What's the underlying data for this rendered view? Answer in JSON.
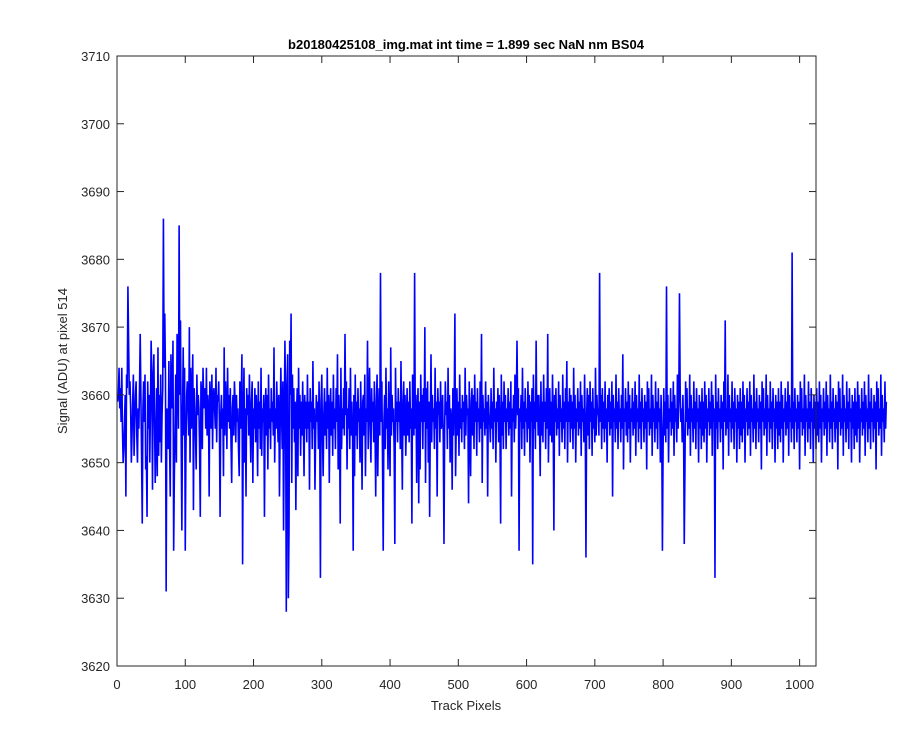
{
  "chart_data": {
    "type": "line",
    "title": "b20180425108_img.mat int time = 1.899 sec  NaN nm BS04",
    "xlabel": "Track Pixels",
    "ylabel": "Signal (ADU) at pixel 514",
    "xlim": [
      0,
      1024
    ],
    "ylim": [
      3620,
      3710
    ],
    "xticks": [
      0,
      100,
      200,
      300,
      400,
      500,
      600,
      700,
      800,
      900,
      1000
    ],
    "yticks": [
      3620,
      3630,
      3640,
      3650,
      3660,
      3670,
      3680,
      3690,
      3700,
      3710
    ],
    "grid": false,
    "line_color": "#0000ff",
    "series": [
      {
        "x_start": 1,
        "x_step": 1,
        "values": [
          3659,
          3660,
          3664,
          3658,
          3661,
          3656,
          3664,
          3655,
          3650,
          3652,
          3656,
          3660,
          3645,
          3663,
          3661,
          3676,
          3668,
          3660,
          3662,
          3658,
          3650,
          3654,
          3659,
          3663,
          3651,
          3656,
          3660,
          3662,
          3654,
          3650,
          3658,
          3655,
          3661,
          3669,
          3660,
          3651,
          3641,
          3658,
          3662,
          3656,
          3663,
          3649,
          3651,
          3642,
          3662,
          3655,
          3660,
          3650,
          3658,
          3668,
          3663,
          3646,
          3662,
          3666,
          3656,
          3647,
          3654,
          3661,
          3648,
          3667,
          3651,
          3660,
          3653,
          3663,
          3650,
          3657,
          3661,
          3686,
          3664,
          3672,
          3663,
          3631,
          3658,
          3655,
          3652,
          3665,
          3653,
          3645,
          3666,
          3660,
          3658,
          3668,
          3637,
          3648,
          3655,
          3663,
          3650,
          3669,
          3664,
          3655,
          3685,
          3660,
          3671,
          3654,
          3640,
          3657,
          3667,
          3654,
          3664,
          3637,
          3652,
          3660,
          3662,
          3658,
          3654,
          3670,
          3650,
          3664,
          3655,
          3660,
          3666,
          3643,
          3661,
          3658,
          3654,
          3649,
          3663,
          3657,
          3660,
          3658,
          3652,
          3642,
          3662,
          3660,
          3652,
          3664,
          3659,
          3658,
          3661,
          3655,
          3664,
          3654,
          3660,
          3658,
          3645,
          3662,
          3659,
          3655,
          3663,
          3652,
          3660,
          3661,
          3658,
          3655,
          3664,
          3653,
          3660,
          3659,
          3662,
          3656,
          3642,
          3657,
          3660,
          3655,
          3658,
          3648,
          3667,
          3654,
          3662,
          3659,
          3652,
          3664,
          3656,
          3660,
          3655,
          3661,
          3653,
          3647,
          3658,
          3660,
          3654,
          3662,
          3659,
          3653,
          3660,
          3656,
          3658,
          3652,
          3648,
          3662,
          3655,
          3659,
          3666,
          3635,
          3656,
          3664,
          3650,
          3658,
          3645,
          3661,
          3657,
          3660,
          3654,
          3663,
          3656,
          3650,
          3659,
          3662,
          3647,
          3658,
          3655,
          3661,
          3653,
          3660,
          3657,
          3648,
          3662,
          3655,
          3659,
          3652,
          3664,
          3651,
          3658,
          3656,
          3660,
          3642,
          3657,
          3661,
          3654,
          3660,
          3649,
          3663,
          3655,
          3658,
          3652,
          3661,
          3656,
          3659,
          3654,
          3667,
          3650,
          3658,
          3655,
          3662,
          3657,
          3653,
          3660,
          3645,
          3655,
          3664,
          3658,
          3652,
          3662,
          3640,
          3655,
          3668,
          3659,
          3628,
          3661,
          3666,
          3630,
          3640,
          3668,
          3660,
          3672,
          3647,
          3663,
          3655,
          3661,
          3653,
          3659,
          3643,
          3657,
          3661,
          3648,
          3664,
          3655,
          3660,
          3651,
          3659,
          3654,
          3662,
          3656,
          3648,
          3660,
          3655,
          3659,
          3653,
          3663,
          3655,
          3659,
          3646,
          3661,
          3656,
          3659,
          3652,
          3665,
          3655,
          3658,
          3646,
          3654,
          3660,
          3656,
          3659,
          3652,
          3662,
          3655,
          3633,
          3659,
          3663,
          3654,
          3648,
          3657,
          3661,
          3654,
          3659,
          3652,
          3664,
          3655,
          3660,
          3647,
          3657,
          3661,
          3654,
          3659,
          3651,
          3663,
          3655,
          3658,
          3652,
          3661,
          3656,
          3666,
          3649,
          3660,
          3655,
          3641,
          3664,
          3652,
          3658,
          3655,
          3661,
          3654,
          3669,
          3657,
          3662,
          3649,
          3658,
          3655,
          3661,
          3652,
          3664,
          3654,
          3659,
          3655,
          3637,
          3660,
          3648,
          3663,
          3654,
          3659,
          3652,
          3661,
          3656,
          3658,
          3650,
          3662,
          3655,
          3646,
          3659,
          3660,
          3654,
          3663,
          3648,
          3658,
          3656,
          3668,
          3652,
          3659,
          3664,
          3655,
          3650,
          3661,
          3656,
          3659,
          3653,
          3662,
          3655,
          3645,
          3659,
          3663,
          3648,
          3657,
          3661,
          3654,
          3678,
          3656,
          3662,
          3650,
          3637,
          3656,
          3660,
          3652,
          3664,
          3655,
          3658,
          3649,
          3662,
          3655,
          3648,
          3667,
          3654,
          3660,
          3656,
          3658,
          3652,
          3638,
          3664,
          3656,
          3659,
          3653,
          3661,
          3656,
          3659,
          3652,
          3665,
          3655,
          3646,
          3659,
          3662,
          3654,
          3660,
          3651,
          3656,
          3661,
          3654,
          3659,
          3653,
          3662,
          3655,
          3658,
          3641,
          3663,
          3661,
          3654,
          3678,
          3655,
          3660,
          3647,
          3657,
          3661,
          3644,
          3659,
          3649,
          3663,
          3656,
          3660,
          3652,
          3661,
          3656,
          3670,
          3647,
          3661,
          3655,
          3662,
          3650,
          3659,
          3642,
          3656,
          3666,
          3653,
          3660,
          3656,
          3658,
          3652,
          3664,
          3655,
          3659,
          3645,
          3661,
          3657,
          3659,
          3653,
          3662,
          3655,
          3656,
          3660,
          3653,
          3638,
          3655,
          3662,
          3657,
          3659,
          3652,
          3664,
          3655,
          3660,
          3650,
          3658,
          3656,
          3646,
          3661,
          3654,
          3659,
          3672,
          3648,
          3656,
          3661,
          3654,
          3659,
          3651,
          3663,
          3655,
          3658,
          3653,
          3660,
          3656,
          3659,
          3652,
          3664,
          3654,
          3660,
          3657,
          3658,
          3644,
          3662,
          3655,
          3648,
          3659,
          3661,
          3654,
          3660,
          3652,
          3663,
          3656,
          3659,
          3651,
          3661,
          3656,
          3658,
          3653,
          3662,
          3655,
          3669,
          3647,
          3660,
          3656,
          3658,
          3654,
          3662,
          3655,
          3659,
          3645,
          3660,
          3657,
          3656,
          3653,
          3661,
          3655,
          3659,
          3652,
          3664,
          3656,
          3658,
          3650,
          3659,
          3656,
          3661,
          3653,
          3660,
          3655,
          3641,
          3663,
          3654,
          3659,
          3652,
          3662,
          3656,
          3660,
          3652,
          3658,
          3656,
          3661,
          3654,
          3659,
          3655,
          3662,
          3645,
          3658,
          3656,
          3660,
          3653,
          3663,
          3655,
          3659,
          3668,
          3657,
          3661,
          3637,
          3658,
          3656,
          3660,
          3652,
          3664,
          3655,
          3659,
          3651,
          3661,
          3656,
          3658,
          3653,
          3662,
          3655,
          3660,
          3650,
          3659,
          3656,
          3661,
          3635,
          3663,
          3655,
          3659,
          3652,
          3668,
          3656,
          3660,
          3654,
          3660,
          3655,
          3648,
          3662,
          3654,
          3659,
          3653,
          3663,
          3656,
          3659,
          3652,
          3661,
          3655,
          3669,
          3650,
          3657,
          3661,
          3654,
          3659,
          3653,
          3663,
          3656,
          3640,
          3660,
          3656,
          3661,
          3654,
          3658,
          3655,
          3662,
          3651,
          3660,
          3656,
          3658,
          3653,
          3663,
          3655,
          3659,
          3652,
          3661,
          3656,
          3665,
          3650,
          3659,
          3656,
          3661,
          3653,
          3660,
          3655,
          3659,
          3652,
          3664,
          3655,
          3660,
          3650,
          3658,
          3656,
          3661,
          3654,
          3659,
          3655,
          3662,
          3651,
          3660,
          3656,
          3658,
          3653,
          3663,
          3655,
          3636,
          3657,
          3661,
          3654,
          3660,
          3652,
          3662,
          3656,
          3659,
          3651,
          3661,
          3655,
          3658,
          3653,
          3664,
          3654,
          3660,
          3657,
          3658,
          3654,
          3678,
          3656,
          3660,
          3652,
          3661,
          3655,
          3659,
          3653,
          3662,
          3655,
          3658,
          3650,
          3660,
          3656,
          3661,
          3654,
          3659,
          3655,
          3662,
          3645,
          3660,
          3656,
          3658,
          3653,
          3663,
          3655,
          3659,
          3652,
          3661,
          3656,
          3658,
          3653,
          3660,
          3655,
          3666,
          3649,
          3658,
          3656,
          3661,
          3654,
          3659,
          3653,
          3662,
          3655,
          3660,
          3650,
          3658,
          3656,
          3661,
          3654,
          3659,
          3655,
          3662,
          3651,
          3660,
          3656,
          3658,
          3653,
          3663,
          3655,
          3659,
          3652,
          3661,
          3656,
          3658,
          3653,
          3660,
          3655,
          3659,
          3649,
          3662,
          3656,
          3661,
          3654,
          3658,
          3655,
          3663,
          3651,
          3660,
          3656,
          3658,
          3653,
          3662,
          3655,
          3659,
          3652,
          3661,
          3656,
          3658,
          3650,
          3660,
          3655,
          3637,
          3652,
          3661,
          3654,
          3659,
          3653,
          3676,
          3655,
          3660,
          3650,
          3658,
          3656,
          3661,
          3654,
          3659,
          3655,
          3662,
          3651,
          3660,
          3656,
          3658,
          3653,
          3663,
          3655,
          3659,
          3675,
          3661,
          3656,
          3658,
          3653,
          3660,
          3655,
          3638,
          3649,
          3662,
          3656,
          3661,
          3654,
          3658,
          3655,
          3663,
          3651,
          3660,
          3656,
          3658,
          3653,
          3662,
          3655,
          3659,
          3652,
          3661,
          3656,
          3658,
          3650,
          3660,
          3655,
          3659,
          3652,
          3661,
          3654,
          3659,
          3653,
          3662,
          3655,
          3660,
          3650,
          3658,
          3656,
          3661,
          3654,
          3659,
          3655,
          3662,
          3651,
          3660,
          3656,
          3658,
          3633,
          3663,
          3655,
          3659,
          3652,
          3661,
          3656,
          3658,
          3653,
          3660,
          3655,
          3659,
          3649,
          3662,
          3656,
          3671,
          3654,
          3658,
          3655,
          3663,
          3651,
          3660,
          3656,
          3658,
          3653,
          3662,
          3655,
          3659,
          3652,
          3661,
          3656,
          3658,
          3650,
          3660,
          3655,
          3659,
          3652,
          3661,
          3654,
          3659,
          3653,
          3662,
          3655,
          3660,
          3650,
          3658,
          3656,
          3661,
          3654,
          3659,
          3655,
          3662,
          3651,
          3660,
          3656,
          3658,
          3653,
          3663,
          3655,
          3659,
          3652,
          3661,
          3656,
          3658,
          3653,
          3660,
          3655,
          3659,
          3649,
          3662,
          3656,
          3661,
          3654,
          3658,
          3655,
          3663,
          3651,
          3660,
          3656,
          3658,
          3653,
          3662,
          3655,
          3659,
          3652,
          3661,
          3656,
          3658,
          3650,
          3660,
          3655,
          3659,
          3652,
          3661,
          3654,
          3659,
          3653,
          3662,
          3655,
          3660,
          3650,
          3658,
          3656,
          3661,
          3654,
          3659,
          3655,
          3662,
          3651,
          3660,
          3656,
          3658,
          3653,
          3681,
          3655,
          3659,
          3652,
          3661,
          3656,
          3658,
          3653,
          3660,
          3655,
          3659,
          3649,
          3662,
          3656,
          3661,
          3654,
          3658,
          3655,
          3663,
          3651,
          3660,
          3656,
          3658,
          3653,
          3662,
          3655,
          3659,
          3652,
          3661,
          3656,
          3658,
          3650,
          3660,
          3655,
          3659,
          3652,
          3661,
          3654,
          3659,
          3653,
          3662,
          3655,
          3660,
          3650,
          3658,
          3656,
          3661,
          3654,
          3659,
          3655,
          3662,
          3651,
          3660,
          3656,
          3658,
          3653,
          3663,
          3655,
          3659,
          3652,
          3661,
          3656,
          3658,
          3653,
          3660,
          3655,
          3659,
          3649,
          3662,
          3656,
          3661,
          3654,
          3658,
          3655,
          3663,
          3651,
          3660,
          3656,
          3658,
          3653,
          3662,
          3655,
          3659,
          3652,
          3661,
          3656,
          3658,
          3650,
          3660,
          3655,
          3659,
          3652,
          3661,
          3654,
          3659,
          3653,
          3662,
          3655,
          3660,
          3650,
          3658,
          3656,
          3661,
          3654,
          3659,
          3655,
          3662,
          3651,
          3660,
          3656,
          3658,
          3653,
          3663,
          3655,
          3659,
          3652,
          3661,
          3656,
          3658,
          3653,
          3660,
          3655,
          3659,
          3649,
          3662,
          3656,
          3661,
          3654,
          3658,
          3655,
          3663,
          3651,
          3660,
          3656,
          3658,
          3653,
          3662,
          3655,
          3659
        ]
      }
    ]
  }
}
